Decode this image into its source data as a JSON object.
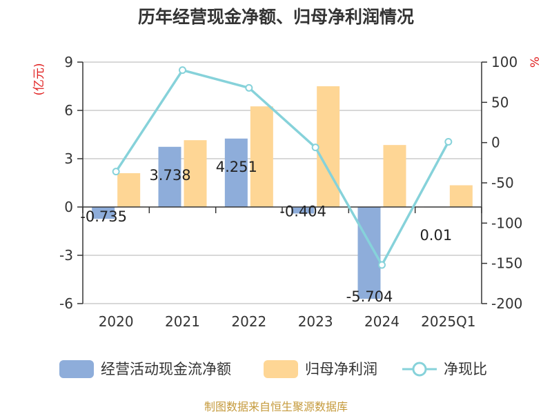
{
  "chart_data": {
    "type": "bar",
    "title": "历年经营现金净额、归母净利润情况",
    "categories": [
      "2020",
      "2021",
      "2022",
      "2023",
      "2024",
      "2025Q1"
    ],
    "series": [
      {
        "name": "经营活动现金流净额",
        "axis": "left",
        "color": "#8eadda",
        "values": [
          -0.735,
          3.738,
          4.251,
          -0.404,
          -5.704,
          0.01
        ],
        "labels": [
          "-0.735",
          "3.738",
          "4.251",
          "-0.404",
          "-5.704",
          "0.01"
        ]
      },
      {
        "name": "归母净利润",
        "axis": "left",
        "color": "#fed695",
        "values": [
          2.1,
          4.15,
          6.25,
          7.5,
          3.85,
          1.35
        ]
      },
      {
        "name": "净现比",
        "axis": "right",
        "type": "line",
        "color": "#86d2da",
        "values": [
          -36,
          90,
          68,
          -6,
          -152,
          1
        ]
      }
    ],
    "y_left": {
      "unit": "(亿元)",
      "ylim": [
        -6,
        9
      ],
      "ticks": [
        "-6",
        "-3",
        "0",
        "3",
        "6",
        "9"
      ]
    },
    "y_right": {
      "unit": "%",
      "ylim": [
        -200,
        100
      ],
      "ticks": [
        "-200",
        "-150",
        "-100",
        "-50",
        "0",
        "50",
        "100"
      ]
    },
    "legend_position": "bottom",
    "grid": true
  },
  "source": "制图数据来自恒生聚源数据库"
}
